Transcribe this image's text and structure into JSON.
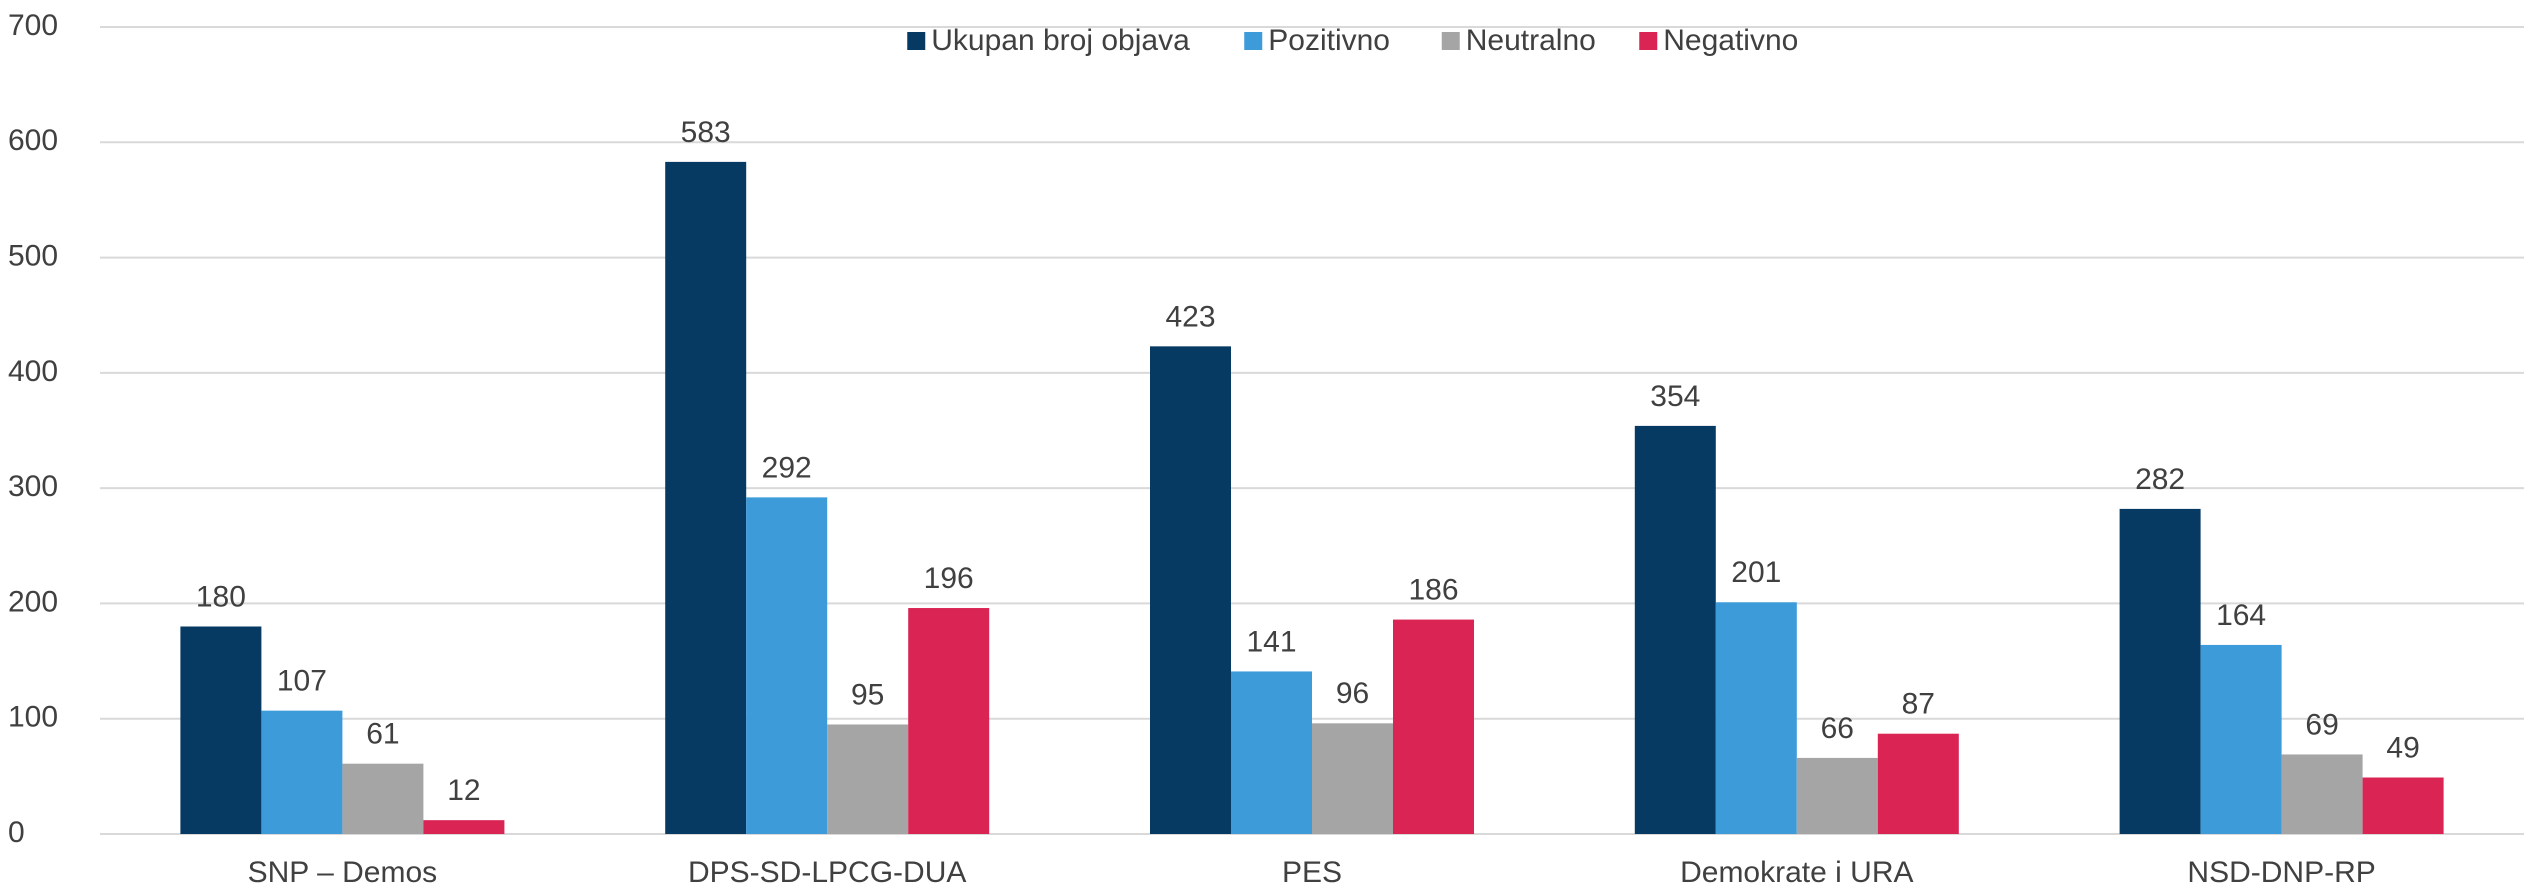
{
  "chart_data": {
    "type": "bar",
    "categories": [
      "SNP – Demos",
      "DPS-SD-LPCG-DUA",
      "PES",
      "Demokrate i URA",
      "NSD-DNP-RP"
    ],
    "series": [
      {
        "name": "Ukupan broj objava",
        "color": "#073a63",
        "values": [
          180,
          583,
          423,
          354,
          282
        ]
      },
      {
        "name": "Pozitivno",
        "color": "#3d9bd9",
        "values": [
          107,
          292,
          141,
          201,
          164
        ]
      },
      {
        "name": "Neutralno",
        "color": "#a5a5a5",
        "values": [
          61,
          95,
          96,
          66,
          69
        ]
      },
      {
        "name": "Negativno",
        "color": "#d92454",
        "values": [
          12,
          196,
          186,
          87,
          49
        ]
      }
    ],
    "ylim": [
      0,
      700
    ],
    "yticks": [
      0,
      100,
      200,
      300,
      400,
      500,
      600,
      700
    ],
    "grid": true,
    "legend": "top"
  }
}
